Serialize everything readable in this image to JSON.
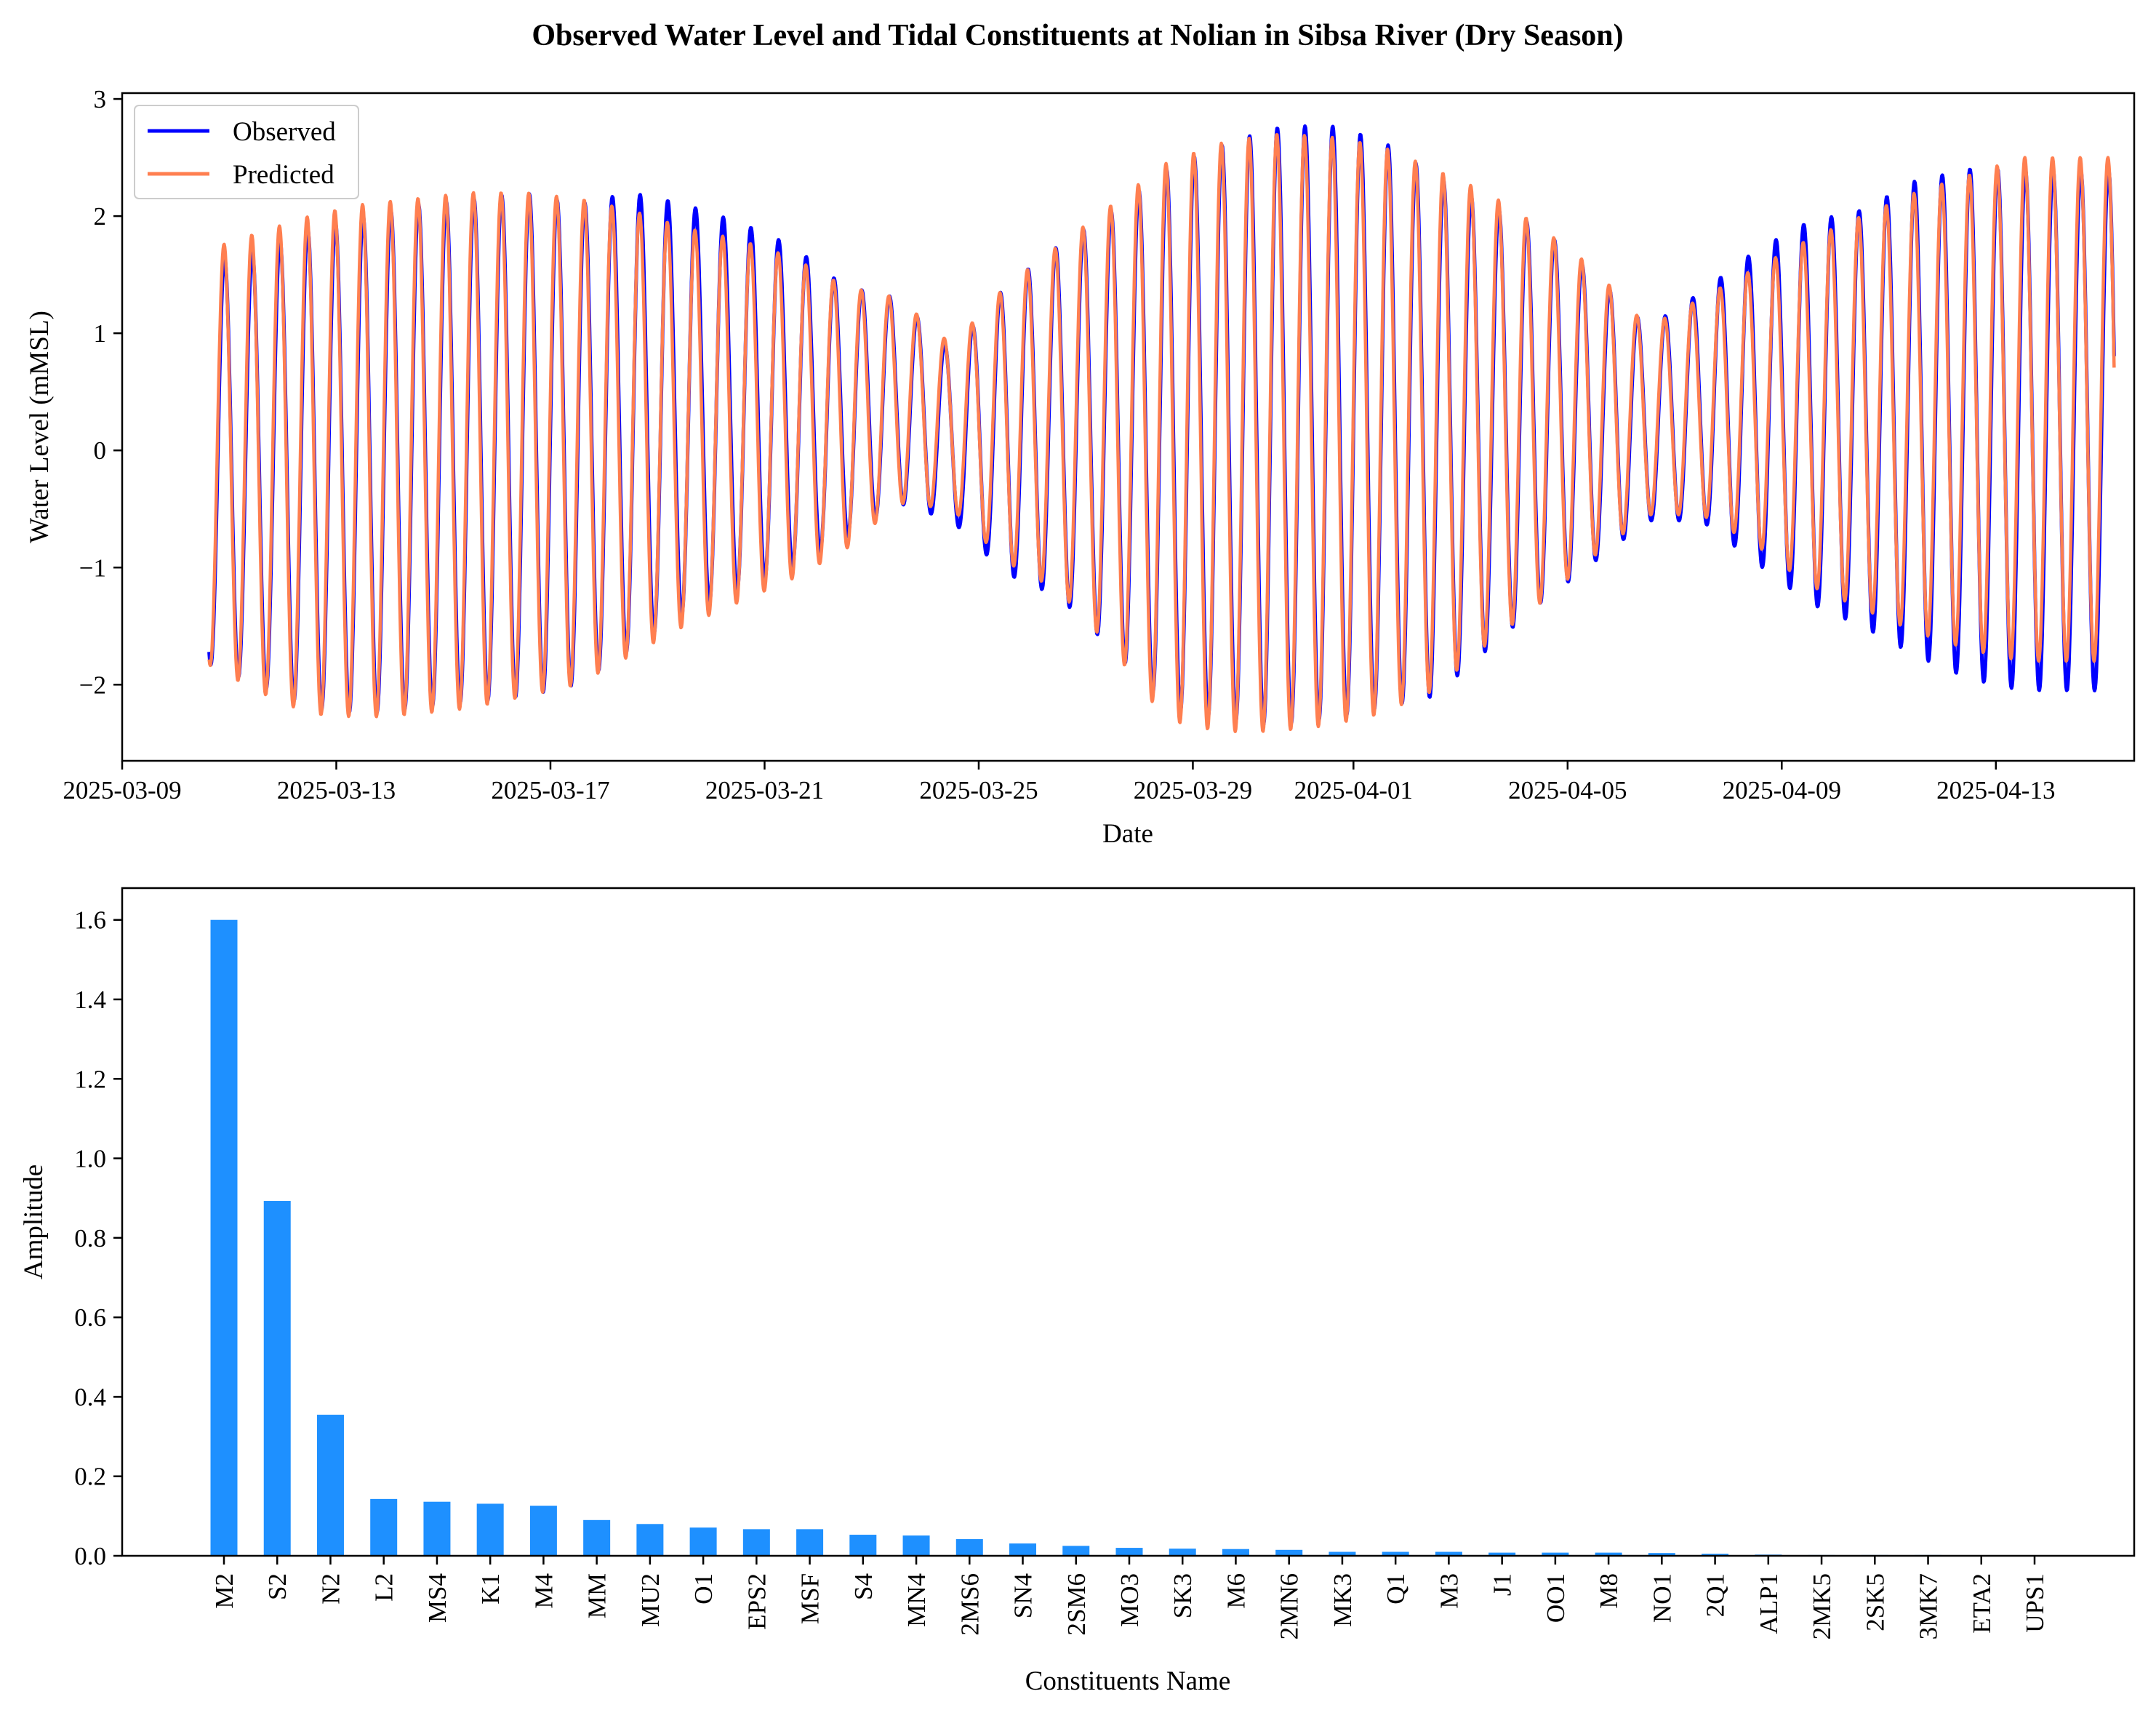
{
  "figure": {
    "title": "Observed Water Level and Tidal Constituents at Nolian in Sibsa River (Dry Season)"
  },
  "chart_data": [
    {
      "type": "line",
      "title": "",
      "xlabel": "Date",
      "ylabel": "Water Level (mMSL)",
      "x_range": [
        "2025-03-09",
        "2025-04-15T14:00"
      ],
      "ylim": [
        -2.65,
        3.05
      ],
      "x_ticks": [
        "2025-03-09",
        "2025-03-13",
        "2025-03-17",
        "2025-03-21",
        "2025-03-25",
        "2025-03-29",
        "2025-04-01",
        "2025-04-05",
        "2025-04-09",
        "2025-04-13"
      ],
      "y_ticks": [
        -2,
        -1,
        0,
        1,
        2,
        3
      ],
      "y_tick_labels": [
        "−2",
        "−1",
        "0",
        "1",
        "2",
        "3"
      ],
      "legend": {
        "position": "upper-left",
        "entries": [
          "Observed",
          "Predicted"
        ]
      },
      "grid": false,
      "sampling": {
        "start": "2025-03-10T15:00",
        "step_hours": 1
      },
      "series": [
        {
          "name": "Observed",
          "color": "#0000ff",
          "daily_extremes": {
            "dates": [
              "2025-03-10",
              "2025-03-11",
              "2025-03-12",
              "2025-03-13",
              "2025-03-14",
              "2025-03-15",
              "2025-03-16",
              "2025-03-17",
              "2025-03-18",
              "2025-03-19",
              "2025-03-20",
              "2025-03-21",
              "2025-03-22",
              "2025-03-23",
              "2025-03-24",
              "2025-03-25",
              "2025-03-26",
              "2025-03-27",
              "2025-03-28",
              "2025-03-29",
              "2025-03-30",
              "2025-03-31",
              "2025-04-01",
              "2025-04-02",
              "2025-04-03",
              "2025-04-04",
              "2025-04-05",
              "2025-04-06",
              "2025-04-07",
              "2025-04-08",
              "2025-04-09",
              "2025-04-10",
              "2025-04-11",
              "2025-04-12",
              "2025-04-13"
            ],
            "high": [
              1.6,
              1.7,
              1.9,
              2.0,
              2.1,
              2.15,
              2.2,
              2.1,
              2.2,
              2.1,
              1.95,
              1.75,
              1.4,
              1.3,
              0.85,
              1.4,
              1.75,
              2.05,
              2.4,
              2.6,
              2.75,
              2.78,
              2.65,
              2.35,
              2.1,
              1.9,
              1.5,
              1.05,
              1.35,
              1.7,
              1.95,
              2.05,
              2.3,
              2.4,
              2.4
            ],
            "low": [
              -1.8,
              -2.0,
              -2.2,
              -2.25,
              -2.2,
              -2.15,
              -2.1,
              -2.0,
              -1.7,
              -1.4,
              -1.2,
              -1.0,
              -0.75,
              -0.45,
              -0.6,
              -1.05,
              -1.25,
              -1.7,
              -2.2,
              -2.3,
              -2.35,
              -2.3,
              -2.2,
              -2.1,
              -1.7,
              -1.3,
              -0.95,
              -0.6,
              -0.6,
              -0.95,
              -1.3,
              -1.5,
              -1.75,
              -1.95,
              -2.05
            ]
          }
        },
        {
          "name": "Predicted",
          "color": "#ff7f50",
          "daily_extremes": {
            "dates": [
              "2025-03-10",
              "2025-03-11",
              "2025-03-12",
              "2025-03-13",
              "2025-03-14",
              "2025-03-15",
              "2025-03-16",
              "2025-03-17",
              "2025-03-18",
              "2025-03-19",
              "2025-03-20",
              "2025-03-21",
              "2025-03-22",
              "2025-03-23",
              "2025-03-24",
              "2025-03-25",
              "2025-03-26",
              "2025-03-27",
              "2025-03-28",
              "2025-03-29",
              "2025-03-30",
              "2025-03-31",
              "2025-04-01",
              "2025-04-02",
              "2025-04-03",
              "2025-04-04",
              "2025-04-05",
              "2025-04-06",
              "2025-04-07",
              "2025-04-08",
              "2025-04-09",
              "2025-04-10",
              "2025-04-11",
              "2025-04-12",
              "2025-04-13"
            ],
            "high": [
              1.7,
              1.85,
              2.0,
              2.1,
              2.15,
              2.2,
              2.2,
              2.15,
              2.05,
              1.9,
              1.8,
              1.65,
              1.4,
              1.3,
              0.9,
              1.4,
              1.75,
              2.1,
              2.45,
              2.62,
              2.7,
              2.68,
              2.6,
              2.4,
              2.2,
              1.9,
              1.55,
              1.05,
              1.3,
              1.55,
              1.8,
              2.0,
              2.2,
              2.35,
              2.5
            ],
            "low": [
              -1.8,
              -2.05,
              -2.25,
              -2.28,
              -2.25,
              -2.2,
              -2.1,
              -2.0,
              -1.75,
              -1.5,
              -1.3,
              -1.1,
              -0.85,
              -0.45,
              -0.5,
              -0.95,
              -1.2,
              -1.7,
              -2.3,
              -2.4,
              -2.4,
              -2.35,
              -2.25,
              -2.05,
              -1.65,
              -1.3,
              -0.9,
              -0.55,
              -0.55,
              -0.8,
              -1.15,
              -1.35,
              -1.55,
              -1.7,
              -1.8
            ]
          }
        }
      ]
    },
    {
      "type": "bar",
      "title": "",
      "xlabel": "Constituents Name",
      "ylabel": "Amplitude",
      "ylim": [
        0,
        1.68
      ],
      "y_ticks": [
        0.0,
        0.2,
        0.4,
        0.6,
        0.8,
        1.0,
        1.2,
        1.4,
        1.6
      ],
      "y_tick_labels": [
        "0.0",
        "0.2",
        "0.4",
        "0.6",
        "0.8",
        "1.0",
        "1.2",
        "1.4",
        "1.6"
      ],
      "grid": false,
      "color": "#1e90ff",
      "categories": [
        "M2",
        "S2",
        "N2",
        "L2",
        "MS4",
        "K1",
        "M4",
        "MM",
        "MU2",
        "O1",
        "EPS2",
        "MSF",
        "S4",
        "MN4",
        "2MS6",
        "SN4",
        "2SM6",
        "MO3",
        "SK3",
        "M6",
        "2MN6",
        "MK3",
        "Q1",
        "M3",
        "J1",
        "OO1",
        "M8",
        "NO1",
        "2Q1",
        "ALP1",
        "2MK5",
        "2SK5",
        "3MK7",
        "ETA2",
        "UPS1"
      ],
      "values": [
        1.6,
        0.893,
        0.355,
        0.143,
        0.136,
        0.131,
        0.126,
        0.09,
        0.08,
        0.071,
        0.067,
        0.067,
        0.053,
        0.051,
        0.042,
        0.031,
        0.025,
        0.02,
        0.018,
        0.017,
        0.015,
        0.01,
        0.01,
        0.01,
        0.008,
        0.008,
        0.008,
        0.007,
        0.005,
        0.003,
        0.002,
        0.002,
        0.002,
        0.001,
        0.001
      ]
    }
  ]
}
